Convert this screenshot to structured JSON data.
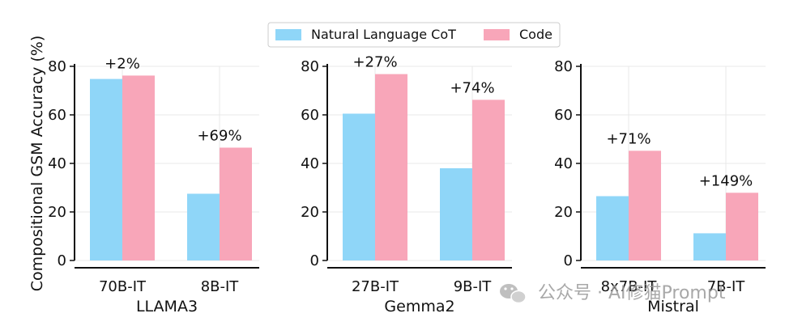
{
  "chart_data": {
    "type": "bar",
    "ylabel": "Compositional GSM Accuracy (%)",
    "ylim": [
      0,
      80
    ],
    "yticks": [
      0,
      20,
      40,
      60,
      80
    ],
    "grid": true,
    "legend_position": "top-center",
    "legend": [
      "Natural Language CoT",
      "Code"
    ],
    "colors": {
      "nl": "#8fd6f8",
      "code": "#f8a6b9",
      "axis": "#111111",
      "grid": "#e8e8e8"
    },
    "panels": [
      {
        "group": "LLAMA3",
        "categories": [
          "70B-IT",
          "8B-IT"
        ],
        "series": [
          {
            "name": "Natural Language CoT",
            "values": [
              74.8,
              27.5
            ]
          },
          {
            "name": "Code",
            "values": [
              76.2,
              46.5
            ]
          }
        ],
        "annotations": [
          "+2%",
          "+69%"
        ]
      },
      {
        "group": "Gemma2",
        "categories": [
          "27B-IT",
          "9B-IT"
        ],
        "series": [
          {
            "name": "Natural Language CoT",
            "values": [
              60.5,
              38.0
            ]
          },
          {
            "name": "Code",
            "values": [
              76.8,
              66.2
            ]
          }
        ],
        "annotations": [
          "+27%",
          "+74%"
        ]
      },
      {
        "group": "Mistral",
        "categories": [
          "8x7B-IT",
          "7B-IT"
        ],
        "series": [
          {
            "name": "Natural Language CoT",
            "values": [
              26.5,
              11.2
            ]
          },
          {
            "name": "Code",
            "values": [
              45.2,
              27.9
            ]
          }
        ],
        "annotations": [
          "+71%",
          "+149%"
        ]
      }
    ]
  },
  "watermark": {
    "text": "公众号 · AI修猫Prompt",
    "icon": "wechat-icon"
  }
}
